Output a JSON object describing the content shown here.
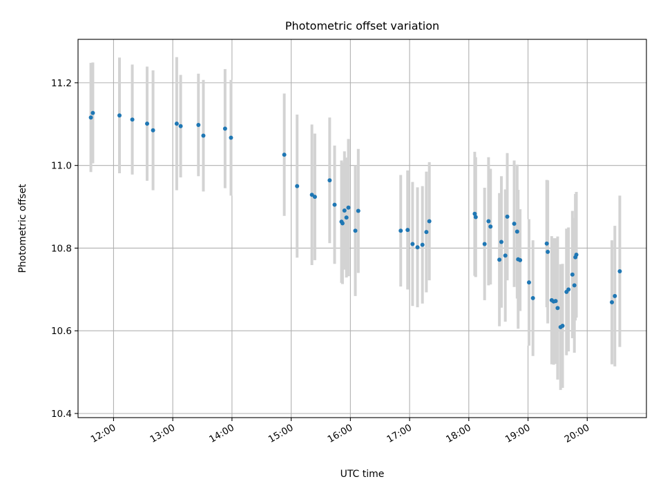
{
  "chart_data": {
    "type": "scatter",
    "title": "Photometric offset variation",
    "xlabel": "UTC time",
    "ylabel": "Photometric offset",
    "x_unit": "UTC time (HH:MM)",
    "xlim": [
      "11:24",
      "21:00"
    ],
    "ylim": [
      10.39,
      11.305
    ],
    "x_ticks": [
      "12:00",
      "13:00",
      "14:00",
      "15:00",
      "16:00",
      "17:00",
      "18:00",
      "19:00",
      "20:00"
    ],
    "y_ticks": [
      "10.4",
      "10.6",
      "10.8",
      "11.0",
      "11.2"
    ],
    "grid": true,
    "legend": "none",
    "colors": {
      "point": "#1f77b4",
      "errorbar": "#d3d3d3",
      "grid": "#b0b0b0"
    },
    "series": [
      {
        "points": [
          {
            "t": "11:37",
            "y": 11.116,
            "err": 0.132
          },
          {
            "t": "11:39",
            "y": 11.127,
            "err": 0.122
          },
          {
            "t": "12:06",
            "y": 11.121,
            "err": 0.14
          },
          {
            "t": "12:19",
            "y": 11.111,
            "err": 0.133
          },
          {
            "t": "12:34",
            "y": 11.101,
            "err": 0.138
          },
          {
            "t": "12:40",
            "y": 11.085,
            "err": 0.145
          },
          {
            "t": "13:04",
            "y": 11.101,
            "err": 0.161
          },
          {
            "t": "13:08",
            "y": 11.095,
            "err": 0.124
          },
          {
            "t": "13:26",
            "y": 11.098,
            "err": 0.124
          },
          {
            "t": "13:31",
            "y": 11.072,
            "err": 0.135
          },
          {
            "t": "13:53",
            "y": 11.089,
            "err": 0.144
          },
          {
            "t": "13:59",
            "y": 11.067,
            "err": 0.14
          },
          {
            "t": "14:53",
            "y": 11.026,
            "err": 0.148
          },
          {
            "t": "15:06",
            "y": 10.95,
            "err": 0.173
          },
          {
            "t": "15:21",
            "y": 10.929,
            "err": 0.17
          },
          {
            "t": "15:24",
            "y": 10.924,
            "err": 0.153
          },
          {
            "t": "15:39",
            "y": 10.964,
            "err": 0.152
          },
          {
            "t": "15:44",
            "y": 10.905,
            "err": 0.143
          },
          {
            "t": "15:51",
            "y": 10.864,
            "err": 0.148
          },
          {
            "t": "15:52",
            "y": 10.86,
            "err": 0.147
          },
          {
            "t": "15:54",
            "y": 10.891,
            "err": 0.143
          },
          {
            "t": "15:56",
            "y": 10.874,
            "err": 0.145
          },
          {
            "t": "15:58",
            "y": 10.898,
            "err": 0.166
          },
          {
            "t": "16:05",
            "y": 10.842,
            "err": 0.158
          },
          {
            "t": "16:08",
            "y": 10.89,
            "err": 0.15
          },
          {
            "t": "16:51",
            "y": 10.842,
            "err": 0.135
          },
          {
            "t": "16:58",
            "y": 10.844,
            "err": 0.144
          },
          {
            "t": "17:03",
            "y": 10.81,
            "err": 0.15
          },
          {
            "t": "17:08",
            "y": 10.802,
            "err": 0.145
          },
          {
            "t": "17:13",
            "y": 10.808,
            "err": 0.142
          },
          {
            "t": "17:17",
            "y": 10.839,
            "err": 0.146
          },
          {
            "t": "17:20",
            "y": 10.865,
            "err": 0.143
          },
          {
            "t": "18:06",
            "y": 10.883,
            "err": 0.15
          },
          {
            "t": "18:07",
            "y": 10.875,
            "err": 0.145
          },
          {
            "t": "18:16",
            "y": 10.81,
            "err": 0.136
          },
          {
            "t": "18:20",
            "y": 10.865,
            "err": 0.155
          },
          {
            "t": "18:22",
            "y": 10.852,
            "err": 0.14
          },
          {
            "t": "18:31",
            "y": 10.772,
            "err": 0.161
          },
          {
            "t": "18:33",
            "y": 10.815,
            "err": 0.159
          },
          {
            "t": "18:37",
            "y": 10.782,
            "err": 0.16
          },
          {
            "t": "18:39",
            "y": 10.876,
            "err": 0.154
          },
          {
            "t": "18:46",
            "y": 10.859,
            "err": 0.153
          },
          {
            "t": "18:49",
            "y": 10.84,
            "err": 0.162
          },
          {
            "t": "18:50",
            "y": 10.773,
            "err": 0.168
          },
          {
            "t": "18:52",
            "y": 10.771,
            "err": 0.123
          },
          {
            "t": "19:01",
            "y": 10.717,
            "err": 0.153
          },
          {
            "t": "19:05",
            "y": 10.679,
            "err": 0.14
          },
          {
            "t": "19:19",
            "y": 10.811,
            "err": 0.154
          },
          {
            "t": "19:20",
            "y": 10.791,
            "err": 0.173
          },
          {
            "t": "19:24",
            "y": 10.674,
            "err": 0.155
          },
          {
            "t": "19:26",
            "y": 10.671,
            "err": 0.153
          },
          {
            "t": "19:28",
            "y": 10.672,
            "err": 0.152
          },
          {
            "t": "19:30",
            "y": 10.655,
            "err": 0.173
          },
          {
            "t": "19:33",
            "y": 10.609,
            "err": 0.152
          },
          {
            "t": "19:35",
            "y": 10.612,
            "err": 0.15
          },
          {
            "t": "19:39",
            "y": 10.694,
            "err": 0.153
          },
          {
            "t": "19:41",
            "y": 10.7,
            "err": 0.15
          },
          {
            "t": "19:45",
            "y": 10.736,
            "err": 0.154
          },
          {
            "t": "19:47",
            "y": 10.71,
            "err": 0.163
          },
          {
            "t": "19:48",
            "y": 10.778,
            "err": 0.153
          },
          {
            "t": "19:49",
            "y": 10.784,
            "err": 0.152
          },
          {
            "t": "20:25",
            "y": 10.669,
            "err": 0.15
          },
          {
            "t": "20:28",
            "y": 10.684,
            "err": 0.17
          },
          {
            "t": "20:33",
            "y": 10.744,
            "err": 0.183
          }
        ]
      }
    ]
  }
}
